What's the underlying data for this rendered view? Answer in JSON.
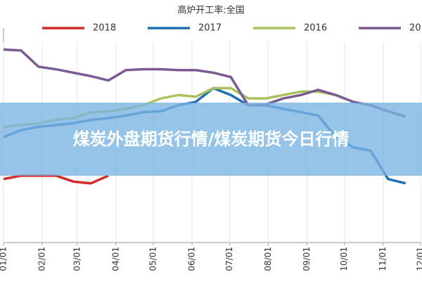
{
  "chart_data": {
    "type": "line",
    "title": "高炉开工率:全国",
    "x": [
      0,
      14,
      28,
      42,
      56,
      70,
      84,
      98,
      112,
      126,
      140,
      154,
      168,
      182,
      196,
      210,
      224,
      238,
      252,
      266,
      280,
      294,
      308,
      322
    ],
    "xlim": [
      0,
      334
    ],
    "xticks": [
      {
        "value": 0,
        "label": "01/01"
      },
      {
        "value": 31,
        "label": "02/01"
      },
      {
        "value": 59,
        "label": "03/01"
      },
      {
        "value": 90,
        "label": "04/01"
      },
      {
        "value": 120,
        "label": "05/01"
      },
      {
        "value": 151,
        "label": "06/01"
      },
      {
        "value": 181,
        "label": "07/01"
      },
      {
        "value": 212,
        "label": "08/01"
      },
      {
        "value": 243,
        "label": "09/01"
      },
      {
        "value": 273,
        "label": "10/01"
      },
      {
        "value": 304,
        "label": "11/01"
      },
      {
        "value": 334,
        "label": "12/01"
      }
    ],
    "ylim": [
      55,
      80
    ],
    "grid": true,
    "series": [
      {
        "name": "2018",
        "color": "#d42a2a",
        "values": [
          62.4,
          62.8,
          62.8,
          62.8,
          62.1,
          61.9,
          62.8,
          null,
          null,
          null,
          null,
          null,
          null,
          null,
          null,
          null,
          null,
          null,
          null,
          null,
          null,
          null,
          null,
          null
        ]
      },
      {
        "name": "2017",
        "color": "#1f6fb4",
        "values": [
          67.3,
          68.1,
          68.5,
          68.7,
          68.9,
          69.3,
          69.5,
          69.8,
          70.2,
          70.3,
          71.0,
          71.4,
          73.0,
          72.2,
          71.0,
          71.0,
          70.6,
          70.2,
          69.8,
          67.3,
          66.1,
          65.7,
          62.4,
          61.9
        ]
      },
      {
        "name": "2016",
        "color": "#a9c25a",
        "values": [
          68.5,
          68.7,
          68.9,
          69.3,
          69.5,
          70.2,
          70.3,
          70.6,
          71.0,
          71.8,
          72.2,
          72.0,
          73.0,
          73.0,
          71.8,
          71.8,
          72.2,
          72.6,
          72.6,
          72.2,
          71.4,
          71.0,
          70.3,
          69.7
        ]
      },
      {
        "name": "20",
        "color": "#7a5a92",
        "values": [
          77.5,
          77.4,
          75.5,
          75.2,
          74.8,
          74.4,
          73.9,
          75.1,
          75.2,
          75.2,
          75.1,
          75.1,
          74.8,
          74.3,
          71.0,
          71.1,
          71.8,
          72.2,
          72.8,
          72.2,
          71.4,
          71.0,
          70.3,
          69.7
        ]
      }
    ]
  },
  "overlay": {
    "text": "煤炭外盘期货行情/煤炭期货今日行情"
  }
}
